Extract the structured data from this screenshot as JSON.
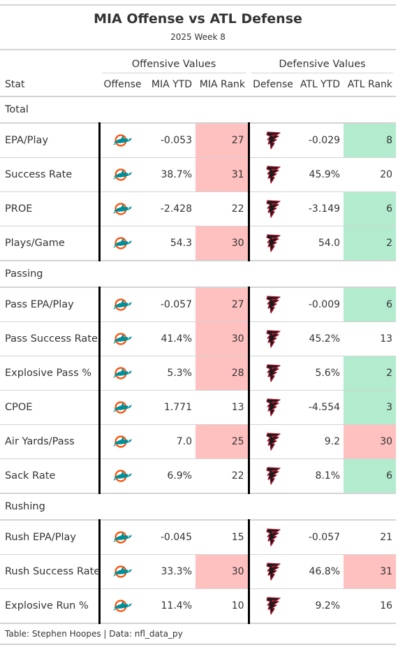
{
  "title": "MIA Offense vs ATL Defense",
  "subtitle": "2025 Week 8",
  "spanners": {
    "offense": "Offensive Values",
    "defense": "Defensive Values"
  },
  "columns": [
    "Stat",
    "Offense",
    "MIA YTD",
    "MIA Rank",
    "Defense",
    "ATL YTD",
    "ATL Rank"
  ],
  "colors": {
    "bad": "#ffc0c0",
    "good": "#b3ebcf",
    "rule": "#d3d3d3",
    "divider": "#000000",
    "dolphins_aqua": "#008e97",
    "dolphins_orange": "#fc4c02",
    "falcons_red": "#a71930"
  },
  "logos": {
    "offense": "miami-dolphins-logo",
    "defense": "atlanta-falcons-logo"
  },
  "groups": [
    {
      "name": "Total",
      "rows": [
        {
          "stat": "EPA/Play",
          "mia_ytd": "-0.053",
          "mia_rank": "27",
          "mia_status": "bad",
          "atl_ytd": "-0.029",
          "atl_rank": "8",
          "atl_status": "good"
        },
        {
          "stat": "Success Rate",
          "mia_ytd": "38.7%",
          "mia_rank": "31",
          "mia_status": "bad",
          "atl_ytd": "45.9%",
          "atl_rank": "20",
          "atl_status": "none"
        },
        {
          "stat": "PROE",
          "mia_ytd": "-2.428",
          "mia_rank": "22",
          "mia_status": "none",
          "atl_ytd": "-3.149",
          "atl_rank": "6",
          "atl_status": "good"
        },
        {
          "stat": "Plays/Game",
          "mia_ytd": "54.3",
          "mia_rank": "30",
          "mia_status": "bad",
          "atl_ytd": "54.0",
          "atl_rank": "2",
          "atl_status": "good"
        }
      ]
    },
    {
      "name": "Passing",
      "rows": [
        {
          "stat": "Pass EPA/Play",
          "mia_ytd": "-0.057",
          "mia_rank": "27",
          "mia_status": "bad",
          "atl_ytd": "-0.009",
          "atl_rank": "6",
          "atl_status": "good"
        },
        {
          "stat": "Pass Success Rate",
          "mia_ytd": "41.4%",
          "mia_rank": "30",
          "mia_status": "bad",
          "atl_ytd": "45.2%",
          "atl_rank": "13",
          "atl_status": "none"
        },
        {
          "stat": "Explosive Pass %",
          "mia_ytd": "5.3%",
          "mia_rank": "28",
          "mia_status": "bad",
          "atl_ytd": "5.6%",
          "atl_rank": "2",
          "atl_status": "good"
        },
        {
          "stat": "CPOE",
          "mia_ytd": "1.771",
          "mia_rank": "13",
          "mia_status": "none",
          "atl_ytd": "-4.554",
          "atl_rank": "3",
          "atl_status": "good"
        },
        {
          "stat": "Air Yards/Pass",
          "mia_ytd": "7.0",
          "mia_rank": "25",
          "mia_status": "bad",
          "atl_ytd": "9.2",
          "atl_rank": "30",
          "atl_status": "bad"
        },
        {
          "stat": "Sack Rate",
          "mia_ytd": "6.9%",
          "mia_rank": "22",
          "mia_status": "none",
          "atl_ytd": "8.1%",
          "atl_rank": "6",
          "atl_status": "good"
        }
      ]
    },
    {
      "name": "Rushing",
      "rows": [
        {
          "stat": "Rush EPA/Play",
          "mia_ytd": "-0.045",
          "mia_rank": "15",
          "mia_status": "none",
          "atl_ytd": "-0.057",
          "atl_rank": "21",
          "atl_status": "none"
        },
        {
          "stat": "Rush Success Rate",
          "mia_ytd": "33.3%",
          "mia_rank": "30",
          "mia_status": "bad",
          "atl_ytd": "46.8%",
          "atl_rank": "31",
          "atl_status": "bad"
        },
        {
          "stat": "Explosive Run %",
          "mia_ytd": "11.4%",
          "mia_rank": "10",
          "mia_status": "none",
          "atl_ytd": "9.2%",
          "atl_rank": "16",
          "atl_status": "none"
        }
      ]
    }
  ],
  "footer": "Table: Stephen Hoopes | Data: nfl_data_py"
}
